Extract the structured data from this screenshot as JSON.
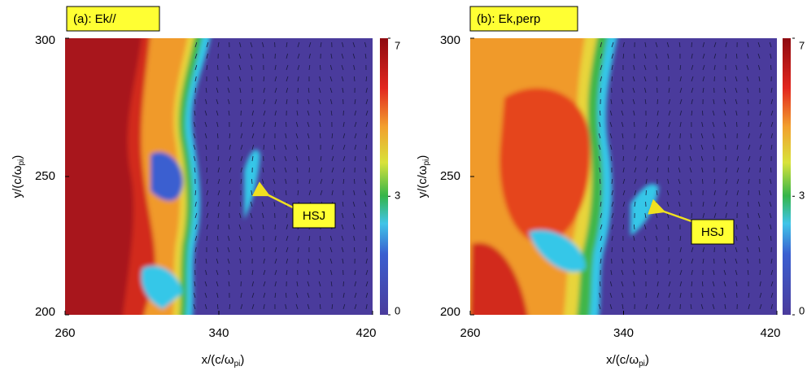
{
  "panels": [
    {
      "label": "(a): Ek//",
      "annotation": "HSJ",
      "xlabel": {
        "main": "x/(c/ω",
        "sub": "pi",
        "end": ")"
      },
      "ylabel": {
        "main": "y/(c/ω",
        "sub": "pi",
        "end": ")"
      },
      "xlim": [
        260,
        420
      ],
      "xticks": [
        260,
        340,
        420
      ],
      "ylim": [
        200,
        300
      ],
      "yticks": [
        200,
        250,
        300
      ],
      "clim": [
        0,
        7
      ],
      "cticks": [
        0,
        3,
        7
      ]
    },
    {
      "label": "(b): Ek,perp",
      "annotation": "HSJ",
      "xlabel": {
        "main": "x/(c/ω",
        "sub": "pi",
        "end": ")"
      },
      "ylabel": {
        "main": "y/(c/ω",
        "sub": "pi",
        "end": ")"
      },
      "xlim": [
        260,
        420
      ],
      "xticks": [
        260,
        340,
        420
      ],
      "ylim": [
        200,
        300
      ],
      "yticks": [
        200,
        250,
        300
      ],
      "clim": [
        0,
        7
      ],
      "cticks": [
        0,
        3,
        7
      ]
    }
  ]
}
